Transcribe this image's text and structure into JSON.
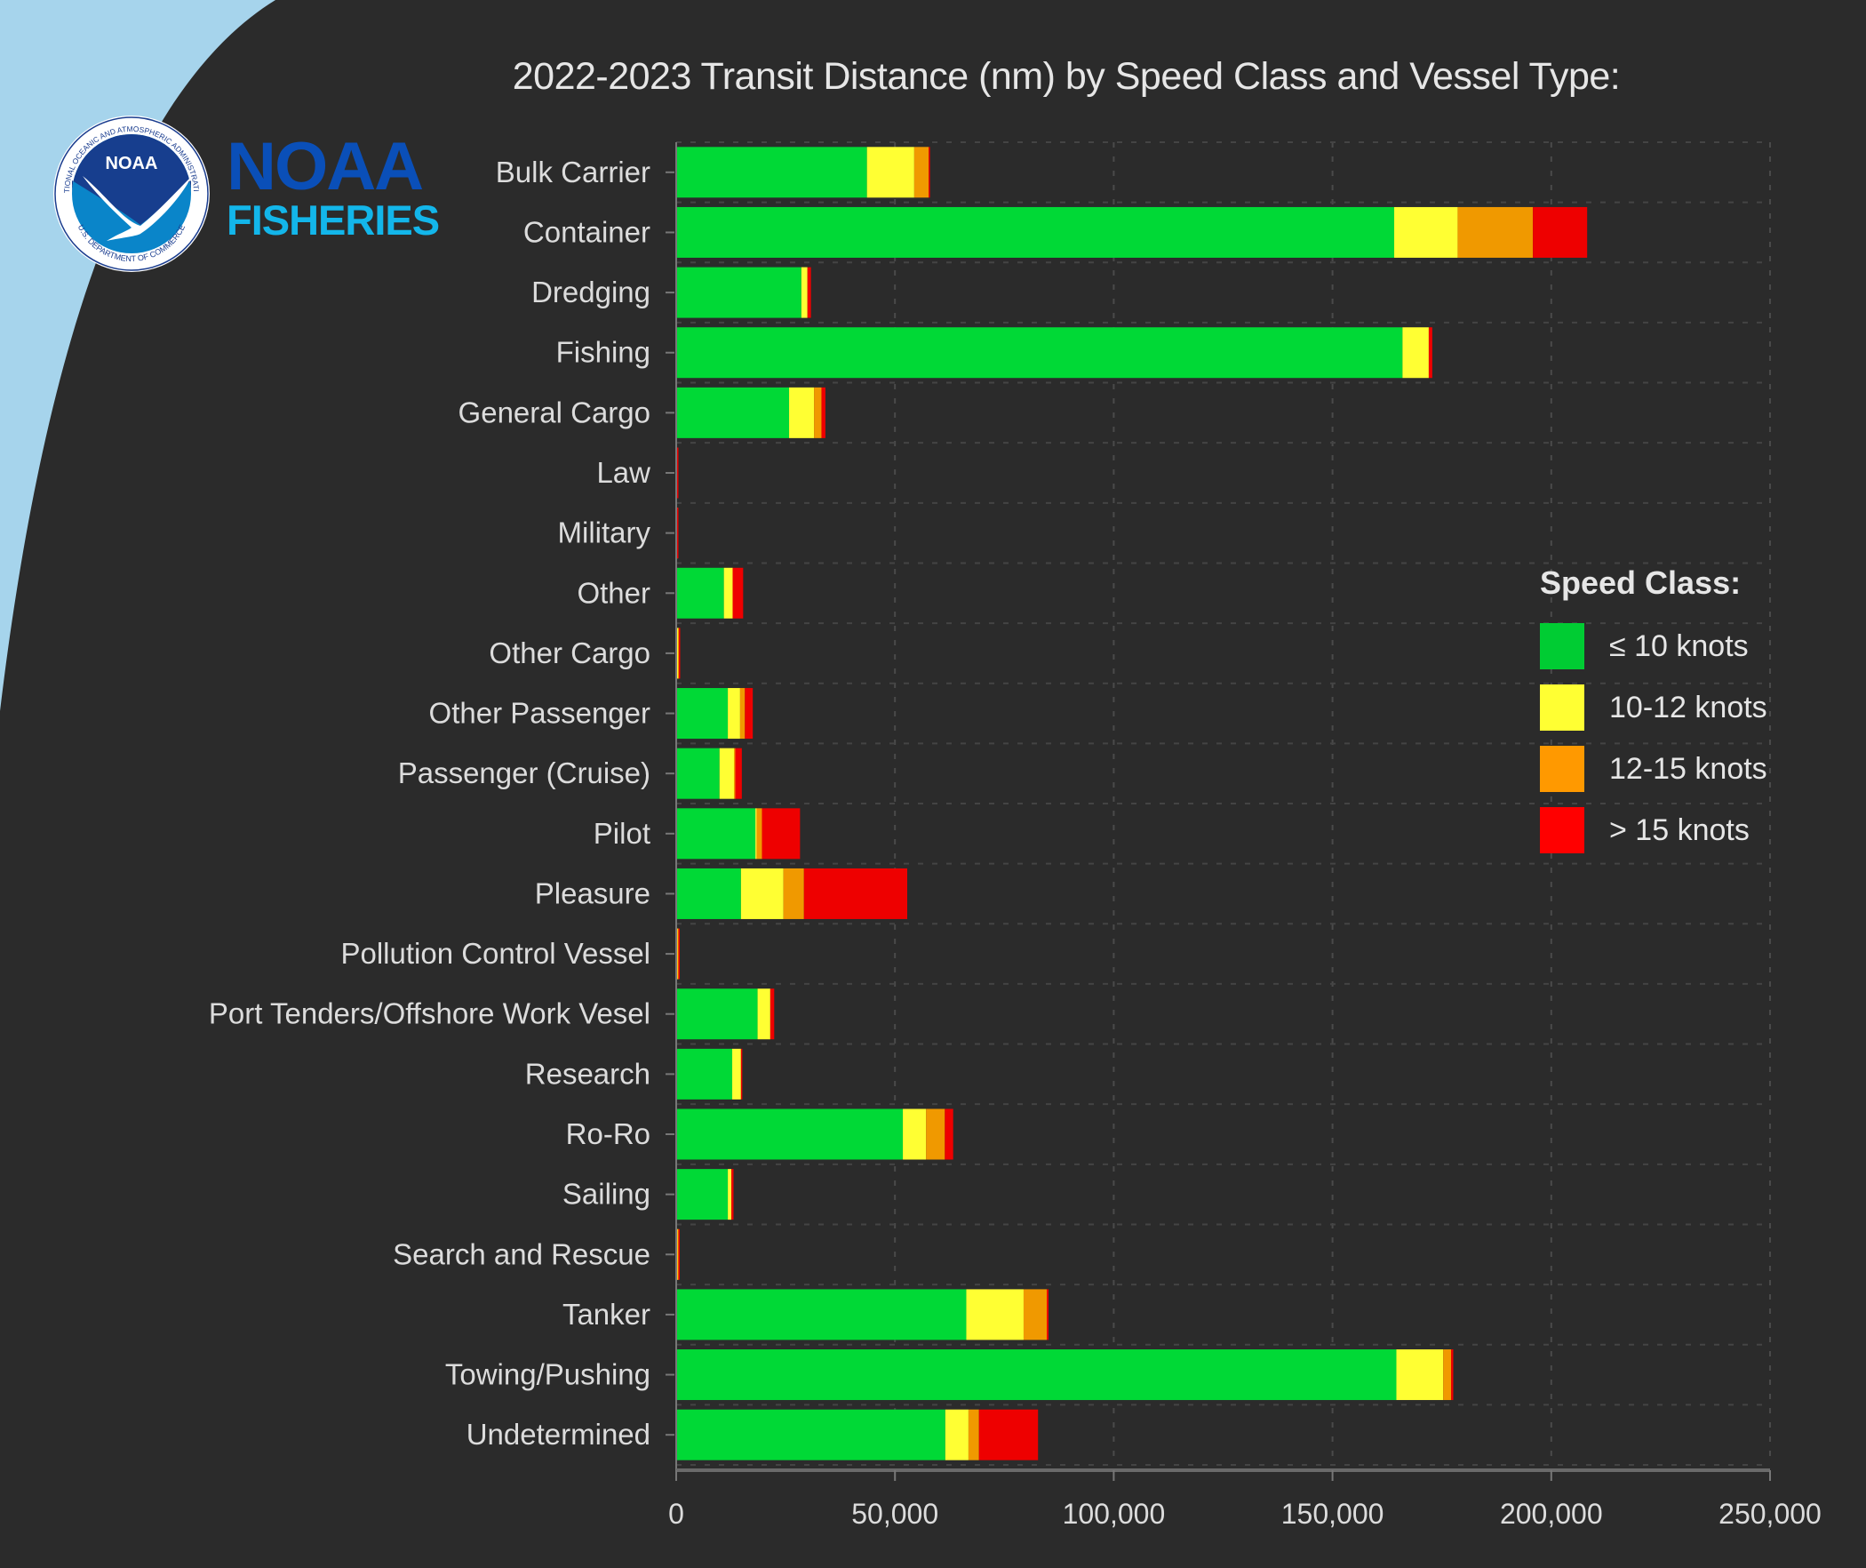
{
  "branding": {
    "seal_text_top": "NATIONAL OCEANIC AND ATMOSPHERIC ADMINISTRATION",
    "seal_text_bottom": "U.S. DEPARTMENT OF COMMERCE",
    "seal_center": "NOAA",
    "name_line1": "NOAA",
    "name_line2": "FISHERIES"
  },
  "colors": {
    "background": "#2b2b2b",
    "corner": "#a6d4ec",
    "text": "#dcdcdc"
  },
  "chart_data": {
    "type": "bar",
    "orientation": "horizontal",
    "stacked": true,
    "title": "2022-2023 Transit Distance (nm) by Speed Class and Vessel Type:",
    "xlabel": "",
    "ylabel": "",
    "xlim": [
      0,
      250000
    ],
    "xticks": [
      0,
      50000,
      100000,
      150000,
      200000,
      250000
    ],
    "xtick_labels": [
      "0",
      "50,000",
      "100,000",
      "150,000",
      "200,000",
      "250,000"
    ],
    "grid": true,
    "legend_title": "Speed Class:",
    "legend_position": "right",
    "categories": [
      "Bulk Carrier",
      "Container",
      "Dredging",
      "Fishing",
      "General Cargo",
      "Law",
      "Military",
      "Other",
      "Other Cargo",
      "Other Passenger",
      "Passenger (Cruise)",
      "Pilot",
      "Pleasure",
      "Pollution Control Vessel",
      "Port Tenders/Offshore Work Vesel",
      "Research",
      "Ro-Ro",
      "Sailing",
      "Search and Rescue",
      "Tanker",
      "Towing/Pushing",
      "Undetermined"
    ],
    "series": [
      {
        "name": "≤ 10 knots",
        "color": "#00d936",
        "values": [
          43600,
          164100,
          28600,
          166000,
          25800,
          100,
          100,
          10900,
          200,
          11800,
          9900,
          18100,
          14800,
          100,
          18600,
          12800,
          51800,
          11800,
          100,
          66300,
          164600,
          61500
        ]
      },
      {
        "name": "10-12 knots",
        "color": "#ffff33",
        "values": [
          10800,
          14500,
          1400,
          6000,
          5700,
          100,
          100,
          2000,
          200,
          2800,
          3300,
          300,
          9700,
          200,
          2900,
          2000,
          5300,
          800,
          200,
          13100,
          10700,
          5300
        ]
      },
      {
        "name": "12-15 knots",
        "color": "#f09900",
        "values": [
          3300,
          17200,
          0,
          0,
          1700,
          0,
          0,
          0,
          200,
          1100,
          300,
          1200,
          4700,
          200,
          0,
          0,
          4300,
          0,
          200,
          5300,
          1800,
          2400
        ]
      },
      {
        "name": "> 15 knots",
        "color": "#ee0000",
        "values": [
          100,
          12400,
          800,
          800,
          900,
          300,
          300,
          2400,
          300,
          1800,
          1500,
          8700,
          23600,
          200,
          900,
          300,
          1900,
          500,
          300,
          400,
          500,
          13500
        ]
      }
    ]
  }
}
